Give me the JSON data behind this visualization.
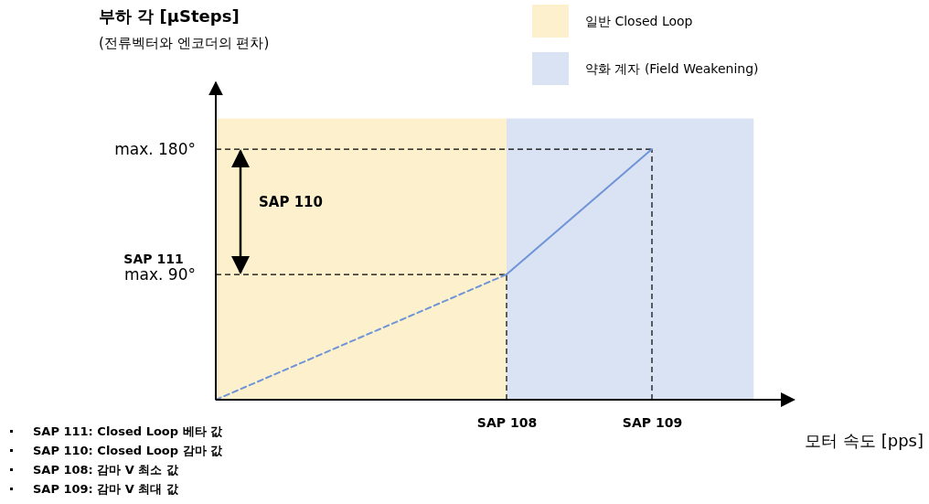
{
  "chart_data": {
    "type": "line",
    "xlabel": "모터 속도 [pps]",
    "ylabel": "부하 각 [µSteps]\n(전류벡터와 엔코더의 편차)",
    "categories": [
      null,
      null,
      "SAP 108",
      "SAP 109"
    ],
    "ylim": [
      0,
      228
    ],
    "yticks": [
      {
        "value": 90,
        "label": "max. 90°"
      },
      {
        "value": 180,
        "label": "max. 180°"
      }
    ],
    "series": [
      {
        "values": [
          0,
          45,
          90,
          null
        ],
        "color": "#7094d8",
        "line_style": "dashed"
      },
      {
        "values": [
          null,
          null,
          90,
          180
        ],
        "color": "#7094d8",
        "line_style": "solid"
      }
    ],
    "ref_lines": [
      {
        "axis": "y",
        "value": 180,
        "label": null,
        "line_style": "dashed"
      },
      {
        "axis": "y",
        "value": 90,
        "label": "SAP 111",
        "line_style": "dashed"
      },
      {
        "axis": "x",
        "value": "SAP 108",
        "label": null,
        "line_style": "dashed"
      },
      {
        "axis": "x",
        "value": "SAP 109",
        "label": null,
        "line_style": "dashed"
      }
    ],
    "annotations": [
      "SAP 110",
      "일반 Closed Loop",
      "약화 계자 (Field Weakening)",
      "SAP 111: Closed Loop 베타 값",
      "SAP 110: Closed Loop 감마 값",
      "SAP 108: 감마 V 최소 값",
      "SAP 109: 감마 V 최대 값"
    ],
    "grid": false
  }
}
